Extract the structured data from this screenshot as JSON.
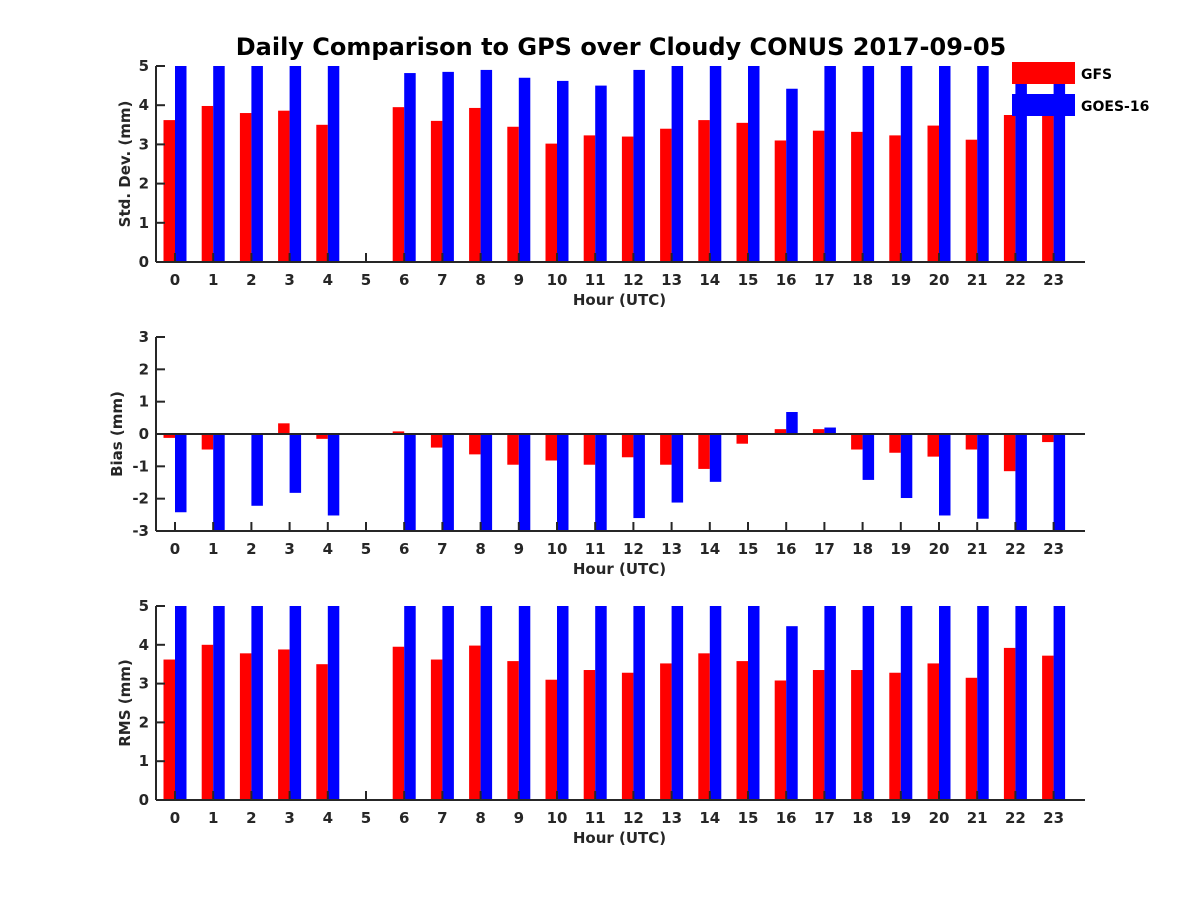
{
  "title": "Daily Comparison to GPS over Cloudy CONUS 2017-09-05",
  "legend": {
    "placement": "top-right",
    "entries": [
      {
        "name": "GFS",
        "color": "#ff0000"
      },
      {
        "name": "GOES-16",
        "color": "#0000ff"
      }
    ]
  },
  "chart_data": [
    {
      "type": "bar",
      "xlabel": "Hour (UTC)",
      "ylabel": "Std. Dev. (mm)",
      "ylim": [
        0,
        5
      ],
      "yticks": [
        "0",
        "1",
        "2",
        "3",
        "4",
        "5"
      ],
      "categories": [
        "0",
        "1",
        "2",
        "3",
        "4",
        "5",
        "6",
        "7",
        "8",
        "9",
        "10",
        "11",
        "12",
        "13",
        "14",
        "15",
        "16",
        "17",
        "18",
        "19",
        "20",
        "21",
        "22",
        "23"
      ],
      "series": [
        {
          "name": "GFS",
          "color": "#ff0000",
          "values": [
            3.62,
            3.98,
            3.8,
            3.86,
            3.5,
            null,
            3.95,
            3.6,
            3.93,
            3.45,
            3.02,
            3.23,
            3.2,
            3.4,
            3.62,
            3.55,
            3.1,
            3.35,
            3.32,
            3.23,
            3.48,
            3.12,
            3.75,
            3.8
          ]
        },
        {
          "name": "GOES-16",
          "color": "#0000ff",
          "values": [
            5.0,
            5.0,
            5.0,
            5.0,
            5.0,
            null,
            4.82,
            4.85,
            4.9,
            4.7,
            4.62,
            4.5,
            4.9,
            5.0,
            5.0,
            5.0,
            4.42,
            5.0,
            5.0,
            5.0,
            5.0,
            5.0,
            5.0,
            5.0
          ]
        }
      ]
    },
    {
      "type": "bar",
      "xlabel": "Hour (UTC)",
      "ylabel": "Bias (mm)",
      "ylim": [
        -3,
        3
      ],
      "yticks": [
        "-3",
        "-2",
        "-1",
        "0",
        "1",
        "2",
        "3"
      ],
      "categories": [
        "0",
        "1",
        "2",
        "3",
        "4",
        "5",
        "6",
        "7",
        "8",
        "9",
        "10",
        "11",
        "12",
        "13",
        "14",
        "15",
        "16",
        "17",
        "18",
        "19",
        "20",
        "21",
        "22",
        "23"
      ],
      "series": [
        {
          "name": "GFS",
          "color": "#ff0000",
          "values": [
            -0.12,
            -0.48,
            0.0,
            0.33,
            -0.15,
            null,
            0.08,
            -0.42,
            -0.63,
            -0.95,
            -0.82,
            -0.95,
            -0.72,
            -0.95,
            -1.08,
            -0.3,
            0.15,
            0.15,
            -0.48,
            -0.58,
            -0.7,
            -0.48,
            -1.15,
            -0.25
          ]
        },
        {
          "name": "GOES-16",
          "color": "#0000ff",
          "values": [
            -2.42,
            -3.0,
            -2.22,
            -1.82,
            -2.52,
            null,
            -3.0,
            -3.0,
            -3.0,
            -3.0,
            -3.0,
            -3.0,
            -2.6,
            -2.12,
            -1.48,
            0.0,
            0.68,
            0.2,
            -1.42,
            -1.98,
            -2.52,
            -2.62,
            -3.0,
            -3.0
          ]
        }
      ]
    },
    {
      "type": "bar",
      "xlabel": "Hour (UTC)",
      "ylabel": "RMS (mm)",
      "ylim": [
        0,
        5
      ],
      "yticks": [
        "0",
        "1",
        "2",
        "3",
        "4",
        "5"
      ],
      "categories": [
        "0",
        "1",
        "2",
        "3",
        "4",
        "5",
        "6",
        "7",
        "8",
        "9",
        "10",
        "11",
        "12",
        "13",
        "14",
        "15",
        "16",
        "17",
        "18",
        "19",
        "20",
        "21",
        "22",
        "23"
      ],
      "series": [
        {
          "name": "GFS",
          "color": "#ff0000",
          "values": [
            3.62,
            4.0,
            3.78,
            3.88,
            3.5,
            null,
            3.95,
            3.62,
            3.98,
            3.58,
            3.1,
            3.35,
            3.28,
            3.52,
            3.78,
            3.58,
            3.08,
            3.35,
            3.35,
            3.28,
            3.52,
            3.15,
            3.92,
            3.72
          ]
        },
        {
          "name": "GOES-16",
          "color": "#0000ff",
          "values": [
            5.0,
            5.0,
            5.0,
            5.0,
            5.0,
            null,
            5.0,
            5.0,
            5.0,
            5.0,
            5.0,
            5.0,
            5.0,
            5.0,
            5.0,
            5.0,
            4.48,
            5.0,
            5.0,
            5.0,
            5.0,
            5.0,
            5.0,
            5.0
          ]
        }
      ]
    }
  ]
}
